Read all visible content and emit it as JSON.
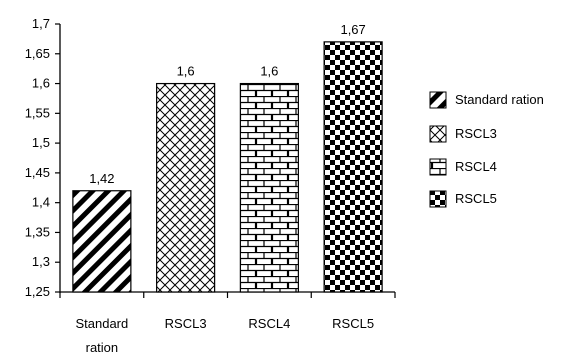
{
  "chart_data": {
    "type": "bar",
    "categories": [
      "Standard ration",
      "RSCL3",
      "RSCL4",
      "RSCL5"
    ],
    "category_lines": [
      [
        "Standard",
        "ration"
      ],
      [
        "RSCL3"
      ],
      [
        "RSCL4"
      ],
      [
        "RSCL5"
      ]
    ],
    "values": [
      1.42,
      1.6,
      1.6,
      1.67
    ],
    "value_labels": [
      "1,42",
      "1,6",
      "1,6",
      "1,67"
    ],
    "ylim": [
      1.25,
      1.7
    ],
    "yticks": [
      1.25,
      1.3,
      1.35,
      1.4,
      1.45,
      1.5,
      1.55,
      1.6,
      1.65,
      1.7
    ],
    "ytick_labels": [
      "1,25",
      "1,3",
      "1,35",
      "1,4",
      "1,45",
      "1,5",
      "1,55",
      "1,6",
      "1,65",
      "1,7"
    ],
    "legend": [
      "Standard ration",
      "RSCL3",
      "RSCL4",
      "RSCL5"
    ],
    "patterns": [
      "diagonal-stripes",
      "lattice",
      "brick",
      "checkerboard"
    ],
    "legend_position": "right",
    "grid": false,
    "title": "",
    "xlabel": "",
    "ylabel": ""
  }
}
